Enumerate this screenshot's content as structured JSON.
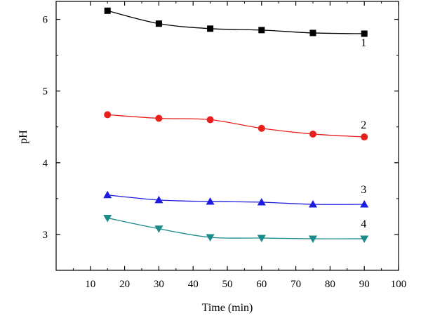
{
  "chart_data": {
    "type": "line",
    "title": "",
    "xlabel": "Time (min)",
    "ylabel": "pH",
    "xlim": [
      0,
      100
    ],
    "ylim": [
      2.5,
      6.25
    ],
    "x_ticks": [
      10,
      20,
      30,
      40,
      50,
      60,
      70,
      80,
      90,
      100
    ],
    "y_ticks": [
      3,
      4,
      5,
      6
    ],
    "grid": false,
    "legend": "none",
    "x": [
      15,
      30,
      45,
      60,
      75,
      90
    ],
    "series": [
      {
        "name": "1",
        "marker": "square",
        "color": "#000000",
        "values": [
          6.12,
          5.94,
          5.87,
          5.85,
          5.81,
          5.8
        ]
      },
      {
        "name": "2",
        "marker": "circle",
        "color": "#e8201c",
        "values": [
          4.67,
          4.62,
          4.6,
          4.48,
          4.4,
          4.36
        ]
      },
      {
        "name": "3",
        "marker": "triangle-up",
        "color": "#1c1ce0",
        "values": [
          3.55,
          3.48,
          3.46,
          3.45,
          3.42,
          3.42
        ]
      },
      {
        "name": "4",
        "marker": "triangle-down",
        "color": "#1a8a8a",
        "values": [
          3.23,
          3.08,
          2.96,
          2.95,
          2.94,
          2.94
        ]
      }
    ]
  }
}
